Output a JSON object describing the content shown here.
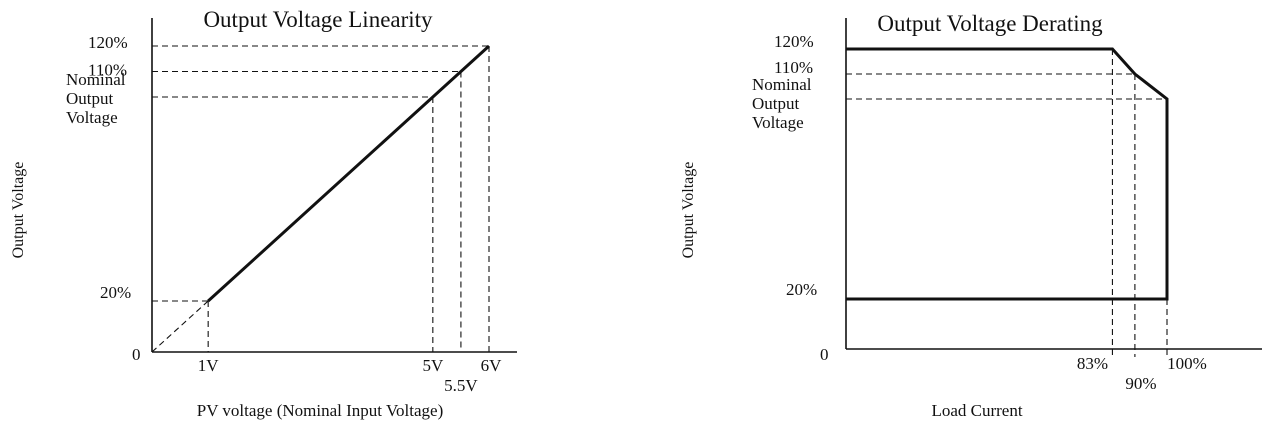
{
  "chart_data": [
    {
      "type": "line",
      "title": "Output Voltage Linearity",
      "xlabel": "PV voltage (Nominal Input Voltage)",
      "ylabel": "Output Voltage",
      "x_tick_labels": [
        "1V",
        "5V",
        "5.5V",
        "6V"
      ],
      "x_ticks": [
        1,
        5,
        5.5,
        6
      ],
      "y_tick_labels": [
        "120%",
        "110%",
        "Nominal Output Voltage",
        "20%"
      ],
      "y_ticks": [
        120,
        110,
        100,
        20
      ],
      "origin_label": "0",
      "xlim": [
        0,
        6.5
      ],
      "ylim": [
        0,
        130
      ],
      "series": [
        {
          "x": [
            1,
            6
          ],
          "y": [
            20,
            120
          ]
        }
      ],
      "guide_line": {
        "x": [
          0,
          1
        ],
        "y": [
          0,
          20
        ]
      }
    },
    {
      "type": "line",
      "title": "Output Voltage Derating",
      "xlabel": "Load Current",
      "ylabel": "Output Voltage",
      "x_tick_labels": [
        "83%",
        "90%",
        "100%"
      ],
      "x_ticks": [
        83,
        90,
        100
      ],
      "y_tick_labels": [
        "120%",
        "110%",
        "Nominal Output Voltage",
        "20%"
      ],
      "y_ticks": [
        120,
        110,
        100,
        20
      ],
      "origin_label": "0",
      "xlim": [
        0,
        125
      ],
      "ylim": [
        0,
        130
      ],
      "series": [
        {
          "x": [
            0,
            83,
            90,
            100,
            100,
            0
          ],
          "y": [
            120,
            120,
            110,
            100,
            20,
            20
          ]
        }
      ]
    }
  ]
}
